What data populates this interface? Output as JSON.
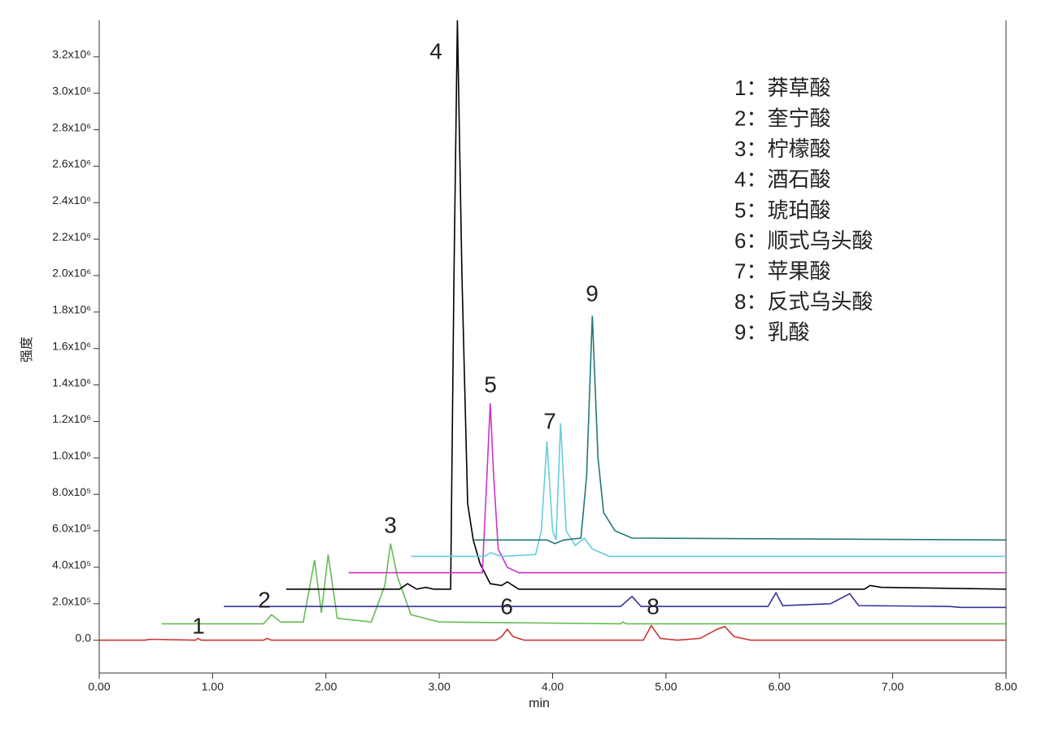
{
  "chart_data": {
    "type": "line",
    "xlabel": "min",
    "ylabel": "强度",
    "xlim": [
      0,
      8
    ],
    "ylim": [
      -180000,
      3400000
    ],
    "xticks": [
      {
        "value": 0,
        "label": "0.00"
      },
      {
        "value": 1,
        "label": "1.00"
      },
      {
        "value": 2,
        "label": "2.00"
      },
      {
        "value": 3,
        "label": "3.00"
      },
      {
        "value": 4,
        "label": "4.00"
      },
      {
        "value": 5,
        "label": "5.00"
      },
      {
        "value": 6,
        "label": "6.00"
      },
      {
        "value": 7,
        "label": "7.00"
      },
      {
        "value": 8,
        "label": "8.00"
      }
    ],
    "yticks": [
      {
        "value": 0,
        "label": "0.0"
      },
      {
        "value": 200000,
        "label": "2.0x10⁵"
      },
      {
        "value": 400000,
        "label": "4.0x10⁵"
      },
      {
        "value": 600000,
        "label": "6.0x10⁵"
      },
      {
        "value": 800000,
        "label": "8.0x10⁵"
      },
      {
        "value": 1000000,
        "label": "1.0x10⁶"
      },
      {
        "value": 1200000,
        "label": "1.2x10⁶"
      },
      {
        "value": 1400000,
        "label": "1.4x10⁶"
      },
      {
        "value": 1600000,
        "label": "1.6x10⁶"
      },
      {
        "value": 1800000,
        "label": "1.8x10⁶"
      },
      {
        "value": 2000000,
        "label": "2.0x10⁶"
      },
      {
        "value": 2200000,
        "label": "2.2x10⁶"
      },
      {
        "value": 2400000,
        "label": "2.4x10⁶"
      },
      {
        "value": 2600000,
        "label": "2.6x10⁶"
      },
      {
        "value": 2800000,
        "label": "2.8x10⁶"
      },
      {
        "value": 3000000,
        "label": "3.0x10⁶"
      },
      {
        "value": 3200000,
        "label": "3.2x10⁶"
      }
    ],
    "series": [
      {
        "color": "#cc3333",
        "x": [
          0,
          0.4,
          0.45,
          0.85,
          0.87,
          0.9,
          1.45,
          1.48,
          1.52,
          3.5,
          3.55,
          3.6,
          3.65,
          3.75,
          4.2,
          4.8,
          4.87,
          4.95,
          5.1,
          5.3,
          5.45,
          5.52,
          5.6,
          5.75,
          8
        ],
        "values": [
          0,
          0,
          5000,
          0,
          10000,
          0,
          0,
          10000,
          0,
          0,
          20000,
          60000,
          20000,
          0,
          0,
          0,
          80000,
          10000,
          0,
          10000,
          60000,
          75000,
          20000,
          0,
          0
        ]
      },
      {
        "color": "#66bb55",
        "x": [
          0.55,
          1.45,
          1.52,
          1.6,
          1.8,
          1.9,
          1.96,
          2.02,
          2.1,
          2.4,
          2.52,
          2.57,
          2.63,
          2.75,
          3.0,
          4.6,
          4.62,
          4.65,
          8
        ],
        "values": [
          90000,
          90000,
          140000,
          100000,
          100000,
          440000,
          150000,
          470000,
          120000,
          100000,
          300000,
          530000,
          350000,
          140000,
          100000,
          90000,
          100000,
          90000,
          90000
        ]
      },
      {
        "color": "#333399",
        "x": [
          1.1,
          4.6,
          4.7,
          4.78,
          5.9,
          5.97,
          6.03,
          6.45,
          6.62,
          6.7,
          7.5,
          7.6,
          8
        ],
        "values": [
          185000,
          185000,
          240000,
          185000,
          185000,
          260000,
          190000,
          200000,
          255000,
          190000,
          185000,
          180000,
          180000
        ]
      },
      {
        "color": "#000000",
        "x": [
          1.65,
          2.65,
          2.72,
          2.8,
          2.88,
          2.95,
          3.1,
          3.13,
          3.16,
          3.2,
          3.25,
          3.3,
          3.36,
          3.45,
          3.55,
          3.6,
          3.7,
          6.75,
          6.8,
          6.9,
          8
        ],
        "values": [
          280000,
          280000,
          310000,
          280000,
          290000,
          280000,
          280000,
          2000000,
          3400000,
          2000000,
          750000,
          550000,
          420000,
          310000,
          300000,
          320000,
          280000,
          280000,
          300000,
          290000,
          280000
        ]
      },
      {
        "color": "#cc33cc",
        "x": [
          2.2,
          3.38,
          3.42,
          3.45,
          3.48,
          3.52,
          3.6,
          3.7,
          8
        ],
        "values": [
          370000,
          370000,
          900000,
          1300000,
          900000,
          500000,
          400000,
          370000,
          370000
        ]
      },
      {
        "color": "#66ccdd",
        "x": [
          2.75,
          3.4,
          3.45,
          3.55,
          3.85,
          3.9,
          3.95,
          4.0,
          4.03,
          4.07,
          4.12,
          4.2,
          4.28,
          4.35,
          4.5,
          8
        ],
        "values": [
          460000,
          460000,
          480000,
          460000,
          470000,
          600000,
          1090000,
          600000,
          550000,
          1190000,
          600000,
          520000,
          560000,
          500000,
          460000,
          460000
        ]
      },
      {
        "color": "#227777",
        "x": [
          3.3,
          3.95,
          4.02,
          4.1,
          4.25,
          4.3,
          4.35,
          4.4,
          4.45,
          4.55,
          4.7,
          8
        ],
        "values": [
          550000,
          550000,
          530000,
          550000,
          560000,
          900000,
          1780000,
          1000000,
          700000,
          600000,
          560000,
          550000
        ]
      }
    ],
    "annotations": [
      "1",
      "2",
      "3",
      "4",
      "5",
      "6",
      "7",
      "8",
      "9"
    ],
    "legend_text": [
      "1：莽草酸",
      "2：奎宁酸",
      "3：柠檬酸",
      "4：酒石酸",
      "5：琥珀酸",
      "6：顺式乌头酸",
      "7：苹果酸",
      "8：反式乌头酸",
      "9：乳酸"
    ]
  }
}
